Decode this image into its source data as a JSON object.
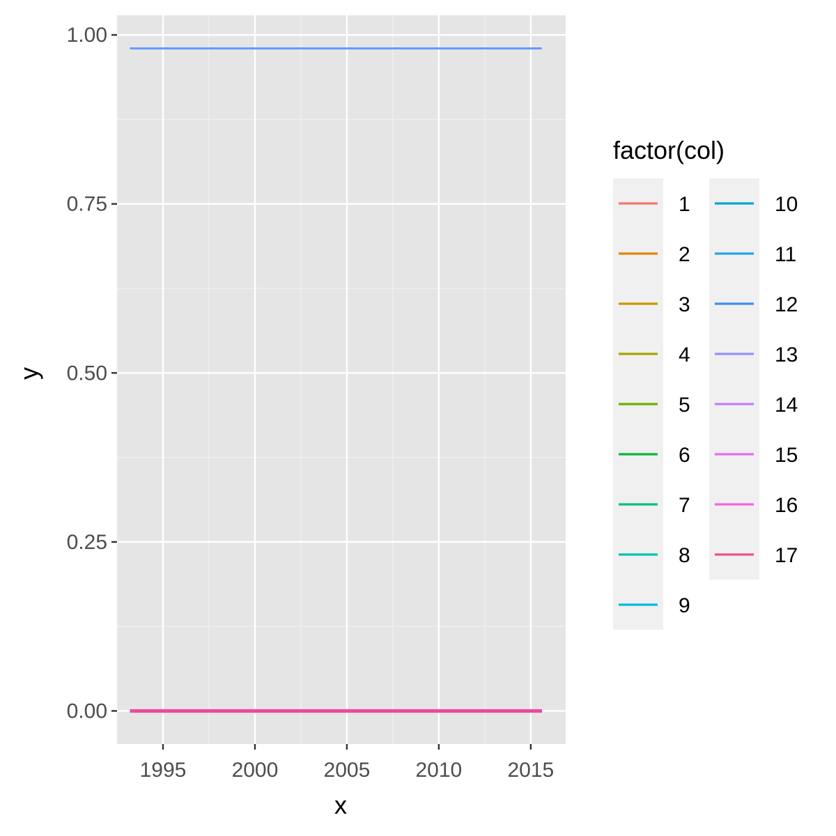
{
  "chart_data": {
    "type": "line",
    "xlabel": "x",
    "ylabel": "y",
    "xlim": [
      1992.5,
      2016.9
    ],
    "ylim": [
      -0.049,
      1.029
    ],
    "x_ticks": [
      1995,
      2000,
      2005,
      2010,
      2015
    ],
    "x_tick_labels": [
      "1995",
      "2000",
      "2005",
      "2010",
      "2015"
    ],
    "y_ticks": [
      0.0,
      0.25,
      0.5,
      0.75,
      1.0
    ],
    "y_tick_labels": [
      "0.00",
      "0.25",
      "0.50",
      "0.75",
      "1.00"
    ],
    "x_minor_ticks": [
      1992.5,
      1997.5,
      2002.5,
      2007.5,
      2012.5
    ],
    "y_minor_ticks": [
      0.125,
      0.375,
      0.625,
      0.875
    ],
    "grid": true,
    "legend_title": "factor(col)",
    "legend_placement": "right",
    "x": [
      1993.2,
      2015.6
    ],
    "series": [
      {
        "name": "1",
        "color": "#F8766D",
        "values": [
          0,
          0
        ]
      },
      {
        "name": "2",
        "color": "#E58700",
        "values": [
          0,
          0
        ]
      },
      {
        "name": "3",
        "color": "#C99800",
        "values": [
          0,
          0
        ]
      },
      {
        "name": "4",
        "color": "#A3A500",
        "values": [
          0,
          0
        ]
      },
      {
        "name": "5",
        "color": "#6BB100",
        "values": [
          0,
          0
        ]
      },
      {
        "name": "6",
        "color": "#00BA38",
        "values": [
          0,
          0
        ]
      },
      {
        "name": "7",
        "color": "#00BF7D",
        "values": [
          0,
          0
        ]
      },
      {
        "name": "8",
        "color": "#00C0AF",
        "values": [
          0,
          0
        ]
      },
      {
        "name": "9",
        "color": "#00BCD8",
        "values": [
          0,
          0
        ]
      },
      {
        "name": "10",
        "color": "#00B0F6",
        "values": [
          0,
          0
        ]
      },
      {
        "name": "11",
        "color": "#619CFF",
        "values": [
          0.98,
          0.98
        ]
      },
      {
        "name": "12",
        "color": "#B983FF",
        "values": [
          0,
          0
        ]
      },
      {
        "name": "13",
        "color": "#E76BF3",
        "values": [
          0,
          0
        ]
      },
      {
        "name": "14",
        "color": "#FD61D1",
        "values": [
          0,
          0
        ]
      },
      {
        "name": "15",
        "color": "#FF67A4",
        "values": [
          0,
          0
        ]
      },
      {
        "name": "16",
        "color": "#F066EA",
        "values": [
          0,
          0
        ]
      },
      {
        "name": "17",
        "color": "#F0489A",
        "values": [
          0,
          0
        ]
      }
    ],
    "legend": [
      {
        "label": "1",
        "color": "#F8766D"
      },
      {
        "label": "2",
        "color": "#E58700"
      },
      {
        "label": "3",
        "color": "#C99800"
      },
      {
        "label": "4",
        "color": "#A3A500"
      },
      {
        "label": "5",
        "color": "#6BB100"
      },
      {
        "label": "6",
        "color": "#00BA38"
      },
      {
        "label": "7",
        "color": "#00BF7D"
      },
      {
        "label": "8",
        "color": "#00C0AF"
      },
      {
        "label": "9",
        "color": "#00BCD8"
      },
      {
        "label": "10",
        "color": "#00A5CF"
      },
      {
        "label": "11",
        "color": "#1FA3E8"
      },
      {
        "label": "12",
        "color": "#3D8EF0"
      },
      {
        "label": "13",
        "color": "#9590FF"
      },
      {
        "label": "14",
        "color": "#C77CFF"
      },
      {
        "label": "15",
        "color": "#E76BF3"
      },
      {
        "label": "16",
        "color": "#F564E3"
      },
      {
        "label": "17",
        "color": "#F0508E"
      }
    ],
    "colors": {
      "panel_background": "#E5E5E5",
      "grid_major": "#FFFFFF",
      "grid_minor": "#F2F2F2",
      "legend_key_background": "#F0F0F0"
    }
  }
}
